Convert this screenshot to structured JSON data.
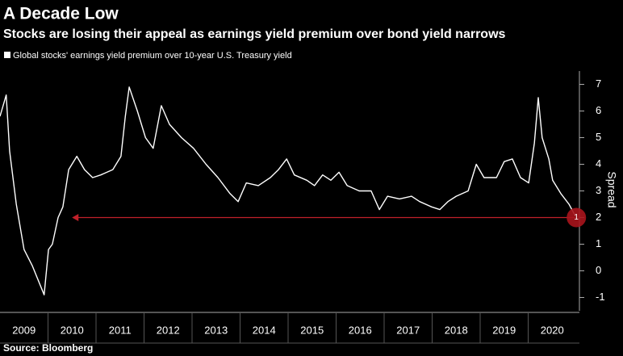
{
  "chart_data": {
    "type": "line",
    "title": "A Decade Low",
    "subtitle": "Stocks are losing their appeal as earnings yield premium over bond yield narrows",
    "source": "Source: Bloomberg",
    "y_label": "Spread",
    "series": [
      {
        "name": "Global stocks' earnings yield premium over 10-year U.S. Treasury yield",
        "color": "#ffffff",
        "x": [
          2009.0,
          2009.13,
          2009.2,
          2009.34,
          2009.5,
          2009.67,
          2009.92,
          2010.01,
          2010.09,
          2010.21,
          2010.31,
          2010.43,
          2010.6,
          2010.76,
          2010.93,
          2011.1,
          2011.35,
          2011.52,
          2011.61,
          2011.69,
          2011.86,
          2012.03,
          2012.19,
          2012.36,
          2012.53,
          2012.78,
          2013.03,
          2013.29,
          2013.54,
          2013.79,
          2013.96,
          2014.13,
          2014.38,
          2014.63,
          2014.8,
          2014.97,
          2015.13,
          2015.39,
          2015.55,
          2015.72,
          2015.89,
          2016.06,
          2016.23,
          2016.48,
          2016.73,
          2016.9,
          2017.07,
          2017.32,
          2017.57,
          2017.74,
          2017.99,
          2018.16,
          2018.33,
          2018.5,
          2018.75,
          2018.92,
          2019.08,
          2019.34,
          2019.5,
          2019.67,
          2019.84,
          2020.01,
          2020.13,
          2020.21,
          2020.29,
          2020.43,
          2020.51,
          2020.68,
          2020.85,
          2020.97
        ],
        "values": [
          5.8,
          6.6,
          4.5,
          2.5,
          0.8,
          0.2,
          -0.9,
          0.8,
          1.0,
          2.0,
          2.4,
          3.8,
          4.3,
          3.8,
          3.5,
          3.6,
          3.8,
          4.3,
          5.8,
          6.9,
          6.0,
          5.0,
          4.6,
          6.2,
          5.5,
          5.0,
          4.6,
          4.0,
          3.5,
          2.9,
          2.6,
          3.3,
          3.2,
          3.5,
          3.8,
          4.2,
          3.6,
          3.4,
          3.2,
          3.6,
          3.4,
          3.7,
          3.2,
          3.0,
          3.0,
          2.3,
          2.8,
          2.7,
          2.8,
          2.6,
          2.4,
          2.3,
          2.6,
          2.8,
          3.0,
          4.0,
          3.5,
          3.5,
          4.1,
          4.2,
          3.5,
          3.3,
          4.8,
          6.5,
          5.0,
          4.2,
          3.4,
          2.9,
          2.5,
          2.1
        ]
      }
    ],
    "xlim": [
      2009,
      2021
    ],
    "xticks": [
      2009,
      2010,
      2011,
      2012,
      2013,
      2014,
      2015,
      2016,
      2017,
      2018,
      2019,
      2020
    ],
    "ylim": [
      -1.5,
      7.5
    ],
    "yticks": [
      -1,
      0,
      1,
      2,
      3,
      4,
      5,
      6,
      7
    ],
    "annotation": {
      "label": "1",
      "y": 2,
      "x_from": 2020.97,
      "x_to": 2010.5
    }
  }
}
